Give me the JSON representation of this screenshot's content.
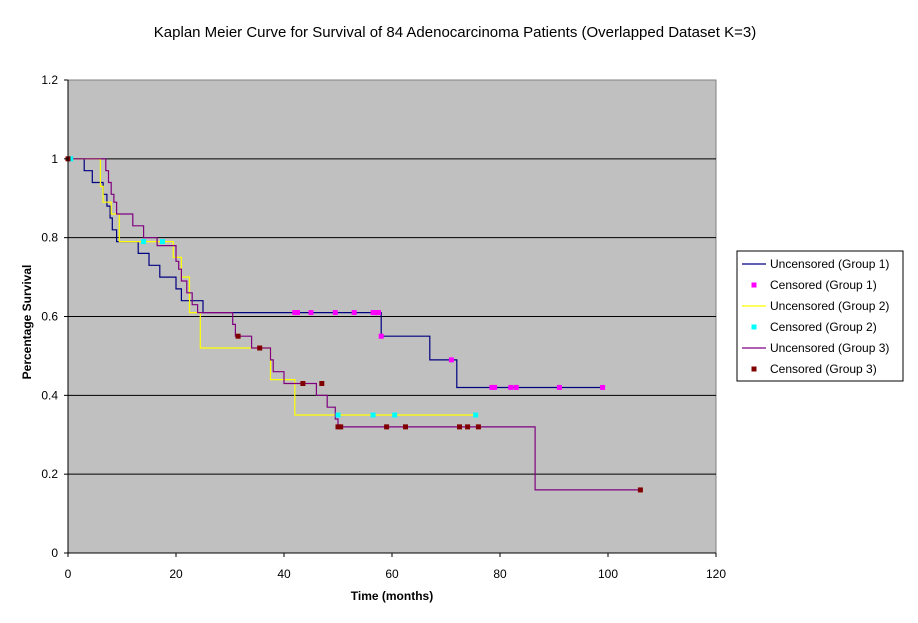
{
  "chart_data": {
    "type": "line",
    "title": "Kaplan Meier Curve for Survival of 84 Adenocarcinoma Patients (Overlapped Dataset K=3)",
    "xlabel": "Time (months)",
    "ylabel": "Percentage Survival",
    "xlim": [
      0,
      120
    ],
    "ylim": [
      0,
      1.2
    ],
    "x_ticks": [
      "0",
      "20",
      "40",
      "60",
      "80",
      "100",
      "120"
    ],
    "y_ticks": [
      "0",
      "0.2",
      "0.4",
      "0.6",
      "0.8",
      "1",
      "1.2"
    ],
    "plot_background": "#c0c0c0",
    "grid": "horizontal",
    "legend_position": "right",
    "series": [
      {
        "name": "Uncensored (Group 1)",
        "kind": "step",
        "color": "#000080",
        "x": [
          0,
          3,
          4.5,
          6.5,
          7.2,
          7.8,
          8.2,
          9,
          10,
          13,
          15,
          17,
          20,
          21,
          22,
          24,
          25,
          57.5,
          58,
          67,
          71.5,
          72,
          99
        ],
        "y": [
          1,
          0.97,
          0.94,
          0.91,
          0.88,
          0.85,
          0.82,
          0.79,
          0.79,
          0.76,
          0.73,
          0.7,
          0.67,
          0.64,
          0.64,
          0.64,
          0.61,
          0.61,
          0.55,
          0.49,
          0.49,
          0.42,
          0.42
        ]
      },
      {
        "name": "Censored (Group 1)",
        "kind": "markers",
        "color": "#ff00ff",
        "x": [
          42,
          42.5,
          45,
          49.5,
          53,
          56.5,
          57,
          57.5,
          58,
          71,
          78.5,
          79,
          82,
          83,
          91,
          99
        ],
        "y": [
          0.61,
          0.61,
          0.61,
          0.61,
          0.61,
          0.61,
          0.61,
          0.61,
          0.55,
          0.49,
          0.42,
          0.42,
          0.42,
          0.42,
          0.42,
          0.42
        ]
      },
      {
        "name": "Uncensored (Group 2)",
        "kind": "step",
        "color": "#ffff00",
        "x": [
          0,
          6,
          6.5,
          8,
          9.5,
          19.5,
          21,
          22.5,
          24.5,
          37.5,
          42,
          76
        ],
        "y": [
          1,
          0.93,
          0.89,
          0.86,
          0.79,
          0.75,
          0.7,
          0.61,
          0.52,
          0.44,
          0.35,
          0.35
        ]
      },
      {
        "name": "Censored (Group 2)",
        "kind": "markers",
        "color": "#00ffff",
        "x": [
          0.5,
          14,
          17.5,
          50,
          56.5,
          60.5,
          75.5
        ],
        "y": [
          1,
          0.79,
          0.79,
          0.35,
          0.35,
          0.35,
          0.35
        ]
      },
      {
        "name": "Uncensored (Group 3)",
        "kind": "step",
        "color": "#800080",
        "x": [
          0,
          7,
          7.5,
          8,
          8.5,
          9,
          12,
          14,
          16.5,
          20,
          20.5,
          21,
          22,
          23,
          24,
          30.5,
          31,
          34,
          37.5,
          38,
          40,
          46,
          48,
          49.5,
          50,
          86.5,
          106
        ],
        "y": [
          1,
          0.97,
          0.94,
          0.91,
          0.89,
          0.86,
          0.83,
          0.8,
          0.78,
          0.74,
          0.72,
          0.69,
          0.66,
          0.63,
          0.61,
          0.58,
          0.55,
          0.52,
          0.49,
          0.46,
          0.43,
          0.4,
          0.37,
          0.34,
          0.32,
          0.16,
          0.16
        ]
      },
      {
        "name": "Censored (Group 3)",
        "kind": "markers",
        "color": "#800000",
        "x": [
          0,
          31.5,
          35.5,
          43.5,
          47,
          50,
          50.5,
          59,
          62.5,
          72.5,
          74,
          76,
          106
        ],
        "y": [
          1,
          0.55,
          0.52,
          0.43,
          0.43,
          0.32,
          0.32,
          0.32,
          0.32,
          0.32,
          0.32,
          0.32,
          0.16
        ]
      }
    ]
  }
}
